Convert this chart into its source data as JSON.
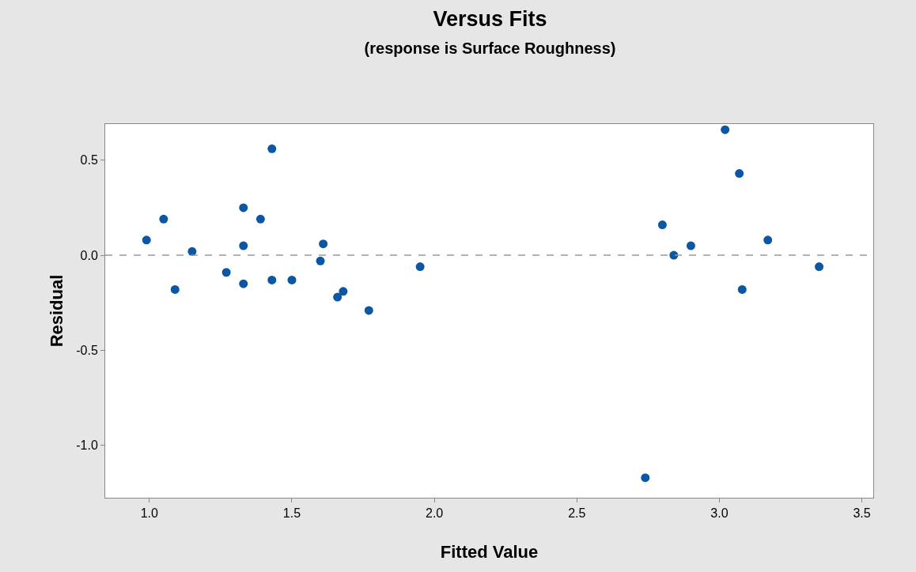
{
  "chart_data": {
    "type": "scatter",
    "title": "Versus Fits",
    "subtitle": "(response is Surface Roughness)",
    "xlabel": "Fitted Value",
    "ylabel": "Residual",
    "x": [
      0.99,
      1.05,
      1.09,
      1.15,
      1.27,
      1.33,
      1.33,
      1.33,
      1.39,
      1.43,
      1.43,
      1.5,
      1.6,
      1.61,
      1.66,
      1.68,
      1.77,
      1.95,
      2.74,
      2.8,
      2.84,
      2.9,
      3.02,
      3.07,
      3.08,
      3.17,
      3.35
    ],
    "series": [
      {
        "color": "#0b57a4",
        "values": [
          0.08,
          0.19,
          -0.18,
          0.02,
          -0.09,
          0.25,
          0.05,
          -0.15,
          0.19,
          0.56,
          -0.13,
          -0.13,
          -0.03,
          0.06,
          -0.22,
          -0.19,
          -0.29,
          -0.06,
          -1.17,
          0.16,
          0.0,
          0.05,
          0.66,
          0.43,
          -0.18,
          0.08,
          -0.06
        ]
      }
    ],
    "xlim": [
      0.845,
      3.54
    ],
    "xticks": [
      {
        "value": 1,
        "label": "1.0"
      },
      {
        "value": 1.5,
        "label": "1.5"
      },
      {
        "value": 2,
        "label": "2.0"
      },
      {
        "value": 2.5,
        "label": "2.5"
      },
      {
        "value": 3,
        "label": "3.0"
      },
      {
        "value": 3.5,
        "label": "3.5"
      }
    ],
    "ylim": [
      -1.275,
      0.69
    ],
    "yticks": [
      {
        "value": -1,
        "label": "-1.0"
      },
      {
        "value": -0.5,
        "label": "-0.5"
      },
      {
        "value": 0,
        "label": "0.0"
      },
      {
        "value": 0.5,
        "label": "0.5"
      }
    ],
    "ref_lines": [
      {
        "axis": "y",
        "value": 0,
        "color": "#999999",
        "line_style": "dashed"
      }
    ],
    "grid": false,
    "marker": "circle"
  }
}
